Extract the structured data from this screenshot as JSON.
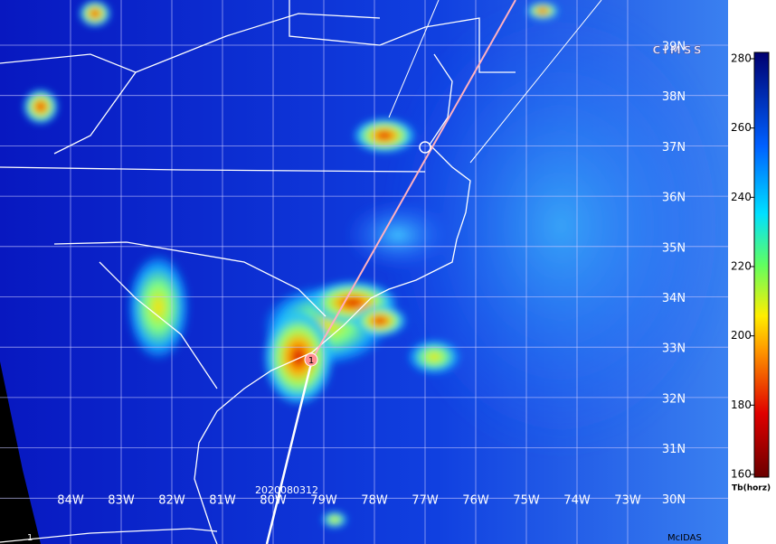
{
  "logo": "CIMSS",
  "timestamp": "2020080312",
  "storm_marker": "1",
  "frame_number": "1",
  "software": "McIDAS",
  "lat_labels": [
    "39N",
    "38N",
    "37N",
    "36N",
    "35N",
    "34N",
    "33N",
    "32N",
    "31N",
    "30N"
  ],
  "lon_labels": [
    "84W",
    "83W",
    "82W",
    "81W",
    "80W",
    "79W",
    "78W",
    "77W",
    "76W",
    "75W",
    "74W",
    "73W"
  ],
  "colorbar": {
    "title": "Tb(horz)",
    "range": [
      160,
      280
    ],
    "ticks": [
      280,
      260,
      240,
      220,
      200,
      180,
      160
    ]
  }
}
